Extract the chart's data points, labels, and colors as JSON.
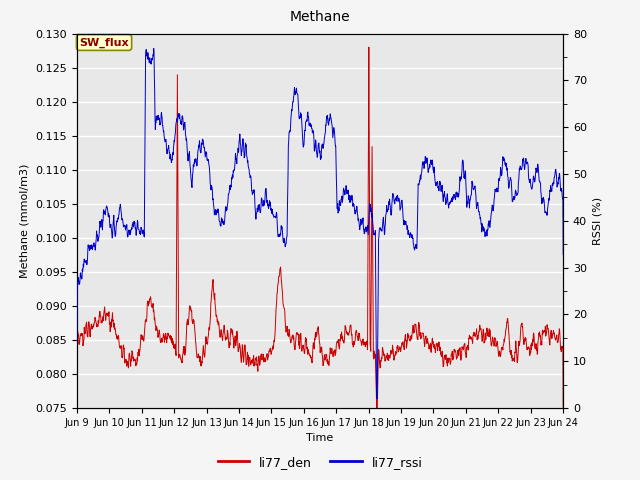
{
  "title": "Methane",
  "ylabel_left": "Methane (mmol/m3)",
  "ylabel_right": "RSSI (%)",
  "xlabel": "Time",
  "ylim_left": [
    0.075,
    0.13
  ],
  "ylim_right": [
    0,
    80
  ],
  "yticks_left": [
    0.075,
    0.08,
    0.085,
    0.09,
    0.095,
    0.1,
    0.105,
    0.11,
    0.115,
    0.12,
    0.125,
    0.13
  ],
  "yticks_right": [
    0,
    10,
    20,
    30,
    40,
    50,
    60,
    70,
    80
  ],
  "xtick_labels": [
    "Jun 9",
    "Jun 10",
    "Jun 11",
    "Jun 12",
    "Jun 13",
    "Jun 14",
    "Jun 15",
    "Jun 16",
    "Jun 17",
    "Jun 18",
    "Jun 19",
    "Jun 20",
    "Jun 21",
    "Jun 22",
    "Jun 23",
    "Jun 24"
  ],
  "legend_labels": [
    "li77_den",
    "li77_rssi"
  ],
  "legend_colors": [
    "#cc0000",
    "#0000cc"
  ],
  "sw_flux_box_color": "#ffffcc",
  "sw_flux_text_color": "#880000",
  "sw_flux_border_color": "#888800",
  "plot_bg_color": "#e8e8e8",
  "fig_bg_color": "#f5f5f5",
  "grid_color": "#ffffff",
  "line_color_red": "#cc0000",
  "line_color_blue": "#0000cc",
  "title_fontsize": 10,
  "axis_label_fontsize": 8,
  "tick_fontsize": 8,
  "legend_fontsize": 9
}
